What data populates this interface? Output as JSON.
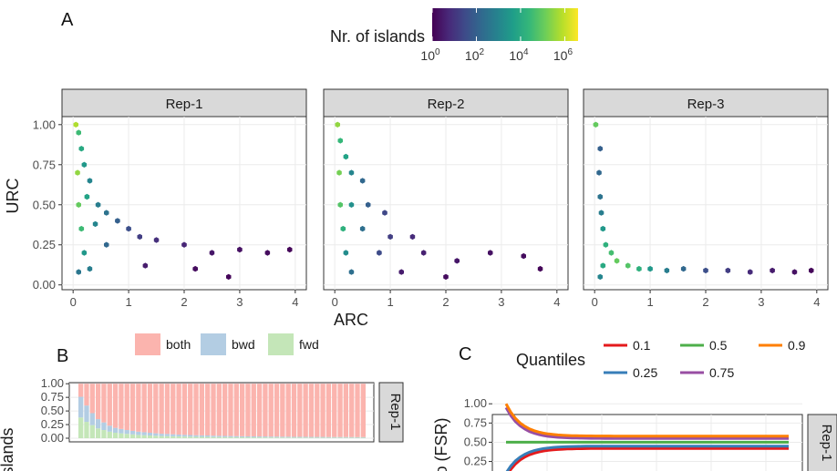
{
  "figure": {
    "panel_a_tag": "A",
    "panel_b_tag": "B",
    "panel_c_tag": "C"
  },
  "chart_data": [
    {
      "type": "heatmap",
      "panel": "A",
      "xlabel": "ARC",
      "ylabel": "URC",
      "xlim": [
        -0.2,
        4.2
      ],
      "ylim": [
        -0.03,
        1.05
      ],
      "x_ticks": [
        0,
        1,
        2,
        3,
        4
      ],
      "y_ticks": [
        0.0,
        0.25,
        0.5,
        0.75,
        1.0
      ],
      "y_tick_labels": [
        "0.00",
        "0.25",
        "0.50",
        "0.75",
        "1.00"
      ],
      "grid": true,
      "colorbar": {
        "title": "Nr. of islands",
        "scale": "log10",
        "colors": [
          "#440154",
          "#482878",
          "#3e4a89",
          "#31688e",
          "#26828e",
          "#1f9e89",
          "#35b779",
          "#6ece58",
          "#b5de2b",
          "#fde725"
        ],
        "tick_exponents": [
          0,
          2,
          4,
          6
        ],
        "tick_base": "10",
        "range_exponents": [
          0,
          6.6
        ]
      },
      "facets": [
        {
          "label": "Rep-1",
          "bins": [
            {
              "x": 0.05,
              "y": 1.0,
              "log_count": 5.8
            },
            {
              "x": 0.1,
              "y": 0.95,
              "log_count": 4.5
            },
            {
              "x": 0.15,
              "y": 0.85,
              "log_count": 4.0
            },
            {
              "x": 0.08,
              "y": 0.7,
              "log_count": 5.5
            },
            {
              "x": 0.2,
              "y": 0.75,
              "log_count": 3.5
            },
            {
              "x": 0.3,
              "y": 0.65,
              "log_count": 3.0
            },
            {
              "x": 0.1,
              "y": 0.5,
              "log_count": 5.0
            },
            {
              "x": 0.25,
              "y": 0.55,
              "log_count": 3.8
            },
            {
              "x": 0.45,
              "y": 0.5,
              "log_count": 2.8
            },
            {
              "x": 0.6,
              "y": 0.45,
              "log_count": 2.5
            },
            {
              "x": 0.15,
              "y": 0.35,
              "log_count": 4.5
            },
            {
              "x": 0.4,
              "y": 0.38,
              "log_count": 3.0
            },
            {
              "x": 0.8,
              "y": 0.4,
              "log_count": 2.0
            },
            {
              "x": 1.0,
              "y": 0.35,
              "log_count": 1.6
            },
            {
              "x": 0.2,
              "y": 0.2,
              "log_count": 3.5
            },
            {
              "x": 0.6,
              "y": 0.25,
              "log_count": 2.2
            },
            {
              "x": 1.2,
              "y": 0.3,
              "log_count": 1.2
            },
            {
              "x": 1.5,
              "y": 0.28,
              "log_count": 0.9
            },
            {
              "x": 2.0,
              "y": 0.25,
              "log_count": 0.7
            },
            {
              "x": 2.5,
              "y": 0.2,
              "log_count": 0.4
            },
            {
              "x": 3.0,
              "y": 0.22,
              "log_count": 0.3
            },
            {
              "x": 3.5,
              "y": 0.2,
              "log_count": 0.2
            },
            {
              "x": 3.9,
              "y": 0.22,
              "log_count": 0.1
            },
            {
              "x": 0.3,
              "y": 0.1,
              "log_count": 2.8
            },
            {
              "x": 0.1,
              "y": 0.08,
              "log_count": 2.6
            },
            {
              "x": 1.3,
              "y": 0.12,
              "log_count": 0.5
            },
            {
              "x": 2.2,
              "y": 0.1,
              "log_count": 0.2
            },
            {
              "x": 2.8,
              "y": 0.05,
              "log_count": 0.1
            }
          ]
        },
        {
          "label": "Rep-2",
          "bins": [
            {
              "x": 0.05,
              "y": 1.0,
              "log_count": 5.5
            },
            {
              "x": 0.1,
              "y": 0.9,
              "log_count": 4.4
            },
            {
              "x": 0.2,
              "y": 0.8,
              "log_count": 3.8
            },
            {
              "x": 0.08,
              "y": 0.7,
              "log_count": 5.2
            },
            {
              "x": 0.3,
              "y": 0.7,
              "log_count": 3.0
            },
            {
              "x": 0.5,
              "y": 0.65,
              "log_count": 2.2
            },
            {
              "x": 0.1,
              "y": 0.5,
              "log_count": 4.8
            },
            {
              "x": 0.3,
              "y": 0.5,
              "log_count": 3.3
            },
            {
              "x": 0.6,
              "y": 0.5,
              "log_count": 2.0
            },
            {
              "x": 0.9,
              "y": 0.45,
              "log_count": 1.4
            },
            {
              "x": 0.15,
              "y": 0.35,
              "log_count": 4.2
            },
            {
              "x": 0.5,
              "y": 0.35,
              "log_count": 2.4
            },
            {
              "x": 1.0,
              "y": 0.3,
              "log_count": 1.2
            },
            {
              "x": 1.4,
              "y": 0.3,
              "log_count": 0.8
            },
            {
              "x": 0.2,
              "y": 0.2,
              "log_count": 3.2
            },
            {
              "x": 0.8,
              "y": 0.2,
              "log_count": 1.5
            },
            {
              "x": 1.6,
              "y": 0.2,
              "log_count": 0.6
            },
            {
              "x": 2.2,
              "y": 0.15,
              "log_count": 0.4
            },
            {
              "x": 2.8,
              "y": 0.2,
              "log_count": 0.3
            },
            {
              "x": 3.4,
              "y": 0.18,
              "log_count": 0.2
            },
            {
              "x": 3.7,
              "y": 0.1,
              "log_count": 0.1
            },
            {
              "x": 0.3,
              "y": 0.08,
              "log_count": 2.4
            },
            {
              "x": 1.2,
              "y": 0.08,
              "log_count": 0.5
            },
            {
              "x": 2.0,
              "y": 0.05,
              "log_count": 0.2
            }
          ]
        },
        {
          "label": "Rep-3",
          "bins": [
            {
              "x": 0.02,
              "y": 1.0,
              "log_count": 5.0
            },
            {
              "x": 0.1,
              "y": 0.85,
              "log_count": 2.0
            },
            {
              "x": 0.08,
              "y": 0.7,
              "log_count": 2.2
            },
            {
              "x": 0.1,
              "y": 0.55,
              "log_count": 2.5
            },
            {
              "x": 0.12,
              "y": 0.45,
              "log_count": 2.8
            },
            {
              "x": 0.15,
              "y": 0.35,
              "log_count": 3.5
            },
            {
              "x": 0.2,
              "y": 0.25,
              "log_count": 4.2
            },
            {
              "x": 0.3,
              "y": 0.2,
              "log_count": 4.6
            },
            {
              "x": 0.4,
              "y": 0.15,
              "log_count": 5.0
            },
            {
              "x": 0.6,
              "y": 0.12,
              "log_count": 4.8
            },
            {
              "x": 0.8,
              "y": 0.1,
              "log_count": 4.2
            },
            {
              "x": 1.0,
              "y": 0.1,
              "log_count": 3.5
            },
            {
              "x": 1.3,
              "y": 0.09,
              "log_count": 2.8
            },
            {
              "x": 1.6,
              "y": 0.1,
              "log_count": 2.2
            },
            {
              "x": 2.0,
              "y": 0.09,
              "log_count": 1.6
            },
            {
              "x": 2.4,
              "y": 0.09,
              "log_count": 1.2
            },
            {
              "x": 2.8,
              "y": 0.08,
              "log_count": 0.8
            },
            {
              "x": 3.2,
              "y": 0.09,
              "log_count": 0.5
            },
            {
              "x": 3.6,
              "y": 0.08,
              "log_count": 0.3
            },
            {
              "x": 3.9,
              "y": 0.09,
              "log_count": 0.1
            },
            {
              "x": 0.1,
              "y": 0.05,
              "log_count": 3.0
            },
            {
              "x": 0.15,
              "y": 0.12,
              "log_count": 4.0
            }
          ]
        }
      ]
    },
    {
      "type": "bar",
      "stacked": true,
      "panel": "B",
      "ylabel_visible": "Islands",
      "ylim": [
        0,
        1.0
      ],
      "y_ticks": [
        0.0,
        0.25,
        0.5,
        0.75,
        1.0
      ],
      "y_tick_labels": [
        "0.00",
        "0.25",
        "0.50",
        "0.75",
        "1.00"
      ],
      "grid": true,
      "legend": {
        "placement": "top",
        "entries": [
          "both",
          "bwd",
          "fwd"
        ]
      },
      "facet_label": "Rep-1",
      "bar_count": 50,
      "series": [
        {
          "name": "fwd",
          "color": "#c4e6b8",
          "values": [
            0.38,
            0.3,
            0.24,
            0.18,
            0.15,
            0.12,
            0.1,
            0.09,
            0.08,
            0.07,
            0.06,
            0.055,
            0.05,
            0.045,
            0.04,
            0.038,
            0.035,
            0.032,
            0.03,
            0.028,
            0.026,
            0.025,
            0.024,
            0.022,
            0.021,
            0.02,
            0.019,
            0.018,
            0.017,
            0.016,
            0.016,
            0.015,
            0.015,
            0.014,
            0.014,
            0.013,
            0.013,
            0.012,
            0.012,
            0.012,
            0.011,
            0.011,
            0.011,
            0.01,
            0.01,
            0.01,
            0.01,
            0.01,
            0.009,
            0.009
          ]
        },
        {
          "name": "bwd",
          "color": "#b3cde3",
          "values": [
            0.38,
            0.3,
            0.22,
            0.17,
            0.14,
            0.11,
            0.09,
            0.08,
            0.07,
            0.065,
            0.06,
            0.055,
            0.05,
            0.045,
            0.042,
            0.04,
            0.037,
            0.034,
            0.032,
            0.03,
            0.028,
            0.027,
            0.026,
            0.024,
            0.023,
            0.022,
            0.021,
            0.02,
            0.019,
            0.018,
            0.018,
            0.017,
            0.017,
            0.016,
            0.016,
            0.015,
            0.015,
            0.014,
            0.014,
            0.014,
            0.013,
            0.013,
            0.013,
            0.012,
            0.012,
            0.012,
            0.012,
            0.011,
            0.011,
            0.011
          ]
        },
        {
          "name": "both",
          "color": "#fbb4ae",
          "values": "remainder to 1.0"
        }
      ]
    },
    {
      "type": "line",
      "panel": "C",
      "ylabel_visible": "o (FSR)",
      "ylim": [
        0.15,
        1.05
      ],
      "y_ticks": [
        0.25,
        0.5,
        0.75,
        1.0
      ],
      "y_tick_labels": [
        "0.25",
        "0.50",
        "0.75",
        "1.00"
      ],
      "grid": true,
      "facet_label": "Rep-1",
      "legend": {
        "title": "Quantiles",
        "placement": "top"
      },
      "series": [
        {
          "name": "0.1",
          "color": "#e41a1c",
          "asymptote": 0.42,
          "start": 0.05,
          "rise": 0.45
        },
        {
          "name": "0.25",
          "color": "#377eb8",
          "asymptote": 0.45,
          "start": 0.1,
          "rise": 0.55
        },
        {
          "name": "0.5",
          "color": "#4daf4a",
          "asymptote": 0.5,
          "start": 0.5,
          "rise": 0.0
        },
        {
          "name": "0.75",
          "color": "#984ea3",
          "asymptote": 0.55,
          "start": 0.95,
          "rise": 0.55
        },
        {
          "name": "0.9",
          "color": "#ff7f00",
          "asymptote": 0.58,
          "start": 1.0,
          "rise": 0.4
        }
      ]
    }
  ]
}
